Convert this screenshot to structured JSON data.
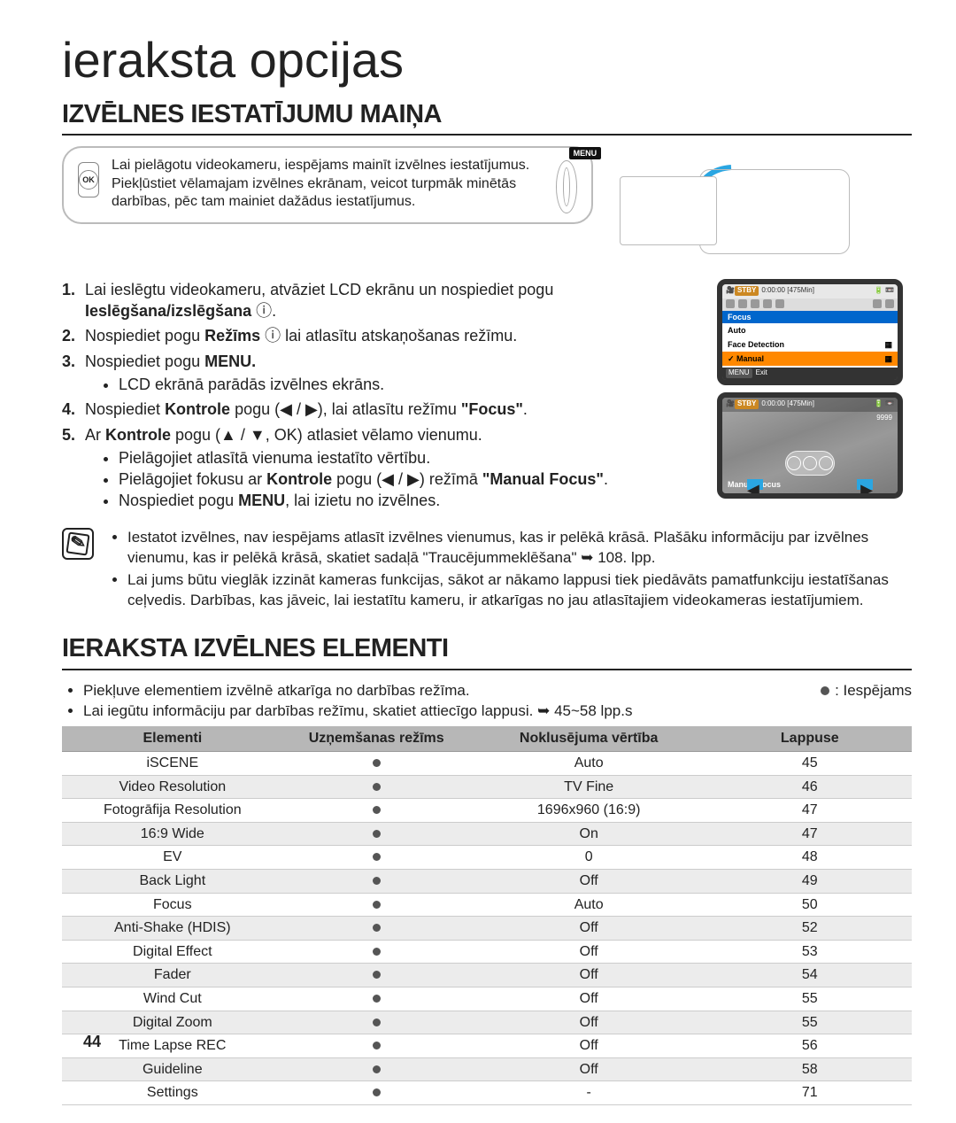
{
  "page": {
    "title": "ieraksta opcijas",
    "section1": "IZVĒLNES IESTATĪJUMU MAIŅA",
    "section2": "IERAKSTA IZVĒLNES ELEMENTI",
    "number": "44"
  },
  "callout": {
    "ok": "OK",
    "text": "Lai pielāgotu videokameru, iespējams mainīt izvēlnes iestatījumus. Piekļūstiet vēlamajam izvēlnes ekrānam, veicot turpmāk minētās darbības, pēc tam mainiet dažādus iestatījumus.",
    "menu_label": "MENU"
  },
  "steps": [
    {
      "n": "1.",
      "t": "Lai ieslēgtu videokameru, atvāziet LCD ekrānu un nospiediet pogu ",
      "bold": "Ieslēgšana/izslēgšana",
      "tail": " ⓘ."
    },
    {
      "n": "2.",
      "t": "Nospiediet pogu ",
      "bold": "Režīms",
      "tail": " ⓘ lai atlasītu atskaņošanas režīmu."
    },
    {
      "n": "3.",
      "t": "Nospiediet pogu ",
      "bold": "MENU.",
      "bullets": [
        "LCD ekrānā parādās izvēlnes ekrāns."
      ]
    },
    {
      "n": "4.",
      "t": "Nospiediet ",
      "bold": "Kontrole",
      "mid": " pogu (◀ / ▶), lai atlasītu režīmu ",
      "bold2": "\"Focus\"",
      "tail2": "."
    },
    {
      "n": "5.",
      "t": "Ar ",
      "bold": "Kontrole",
      "mid": " pogu (▲ / ▼, OK) atlasiet vēlamo vienumu.",
      "bullets": [
        "Pielāgojiet atlasītā vienuma iestatīto vērtību.",
        "Pielāgojiet fokusu ar <b>Kontrole</b> pogu (◀ / ▶) režīmā <b>\"Manual Focus\"</b>.",
        "Nospiediet pogu <b>MENU</b>, lai izietu no izvēlnes."
      ]
    }
  ],
  "lcd1": {
    "stby": "STBY",
    "time": "0:00:00 [475Min]",
    "menu_header": "Focus",
    "opts": [
      {
        "label": "Auto",
        "sel": false
      },
      {
        "label": "Face Detection",
        "sel": false,
        "icon": true
      },
      {
        "label": "Manual",
        "sel": true,
        "icon": true
      }
    ],
    "exit_l": "MENU",
    "exit_r": "Exit"
  },
  "lcd2": {
    "stby": "STBY",
    "time": "0:00:00 [475Min]",
    "count": "9999",
    "label": "Manual Focus"
  },
  "notes": [
    "Iestatot izvēlnes, nav iespējams atlasīt izvēlnes vienumus, kas ir pelēkā krāsā. Plašāku informāciju par izvēlnes vienumu, kas ir pelēkā krāsā, skatiet sadaļā \"Traucējummeklēšana\" ➥ 108. lpp.",
    "Lai jums būtu vieglāk izzināt kameras funkcijas, sākot ar nākamo lappusi tiek piedāvāts pamatfunkciju iestatīšanas ceļvedis. Darbības, kas jāveic, lai iestatītu kameru, ir atkarīgas no jau atlasītajiem videokameras iestatījumiem."
  ],
  "pre_table": [
    "Piekļuve elementiem izvēlnē atkarīga no darbības režīma.",
    "Lai iegūtu informāciju par darbības režīmu, skatiet attiecīgo lappusi. ➥ 45~58 lpp.s"
  ],
  "legend": ": Iespējams",
  "table": {
    "headers": [
      "Elementi",
      "Uzņemšanas režīms",
      "Noklusējuma vērtība",
      "Lappuse"
    ],
    "rows": [
      {
        "e": "iSCENE",
        "d": "Auto",
        "p": "45",
        "tint": false
      },
      {
        "e": "Video Resolution",
        "d": "TV Fine",
        "p": "46",
        "tint": true
      },
      {
        "e": "Fotogrāfija Resolution",
        "d": "1696x960 (16:9)",
        "p": "47",
        "tint": false
      },
      {
        "e": "16:9 Wide",
        "d": "On",
        "p": "47",
        "tint": true
      },
      {
        "e": "EV",
        "d": "0",
        "p": "48",
        "tint": false
      },
      {
        "e": "Back Light",
        "d": "Off",
        "p": "49",
        "tint": true
      },
      {
        "e": "Focus",
        "d": "Auto",
        "p": "50",
        "tint": false
      },
      {
        "e": "Anti-Shake (HDIS)",
        "d": "Off",
        "p": "52",
        "tint": true
      },
      {
        "e": "Digital Effect",
        "d": "Off",
        "p": "53",
        "tint": false
      },
      {
        "e": "Fader",
        "d": "Off",
        "p": "54",
        "tint": true
      },
      {
        "e": "Wind Cut",
        "d": "Off",
        "p": "55",
        "tint": false
      },
      {
        "e": "Digital Zoom",
        "d": "Off",
        "p": "55",
        "tint": true
      },
      {
        "e": "Time Lapse REC",
        "d": "Off",
        "p": "56",
        "tint": false
      },
      {
        "e": "Guideline",
        "d": "Off",
        "p": "58",
        "tint": true
      },
      {
        "e": "Settings",
        "d": "-",
        "p": "71",
        "tint": false
      }
    ]
  }
}
